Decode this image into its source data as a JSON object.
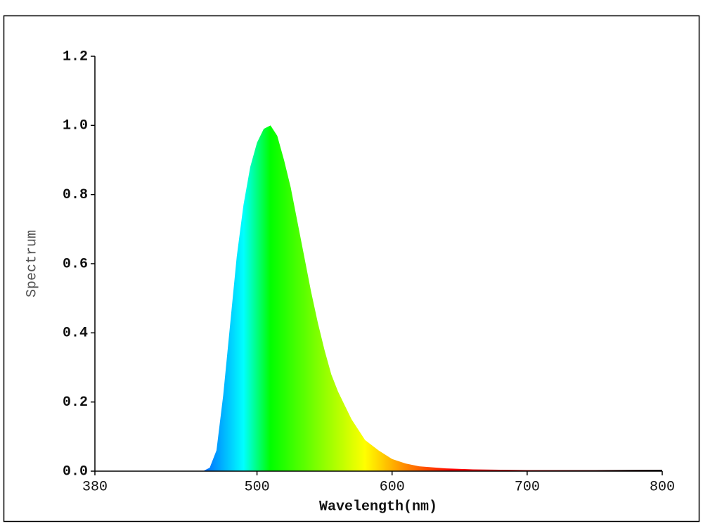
{
  "chart_data": {
    "type": "area",
    "xlabel": "Wavelength(nm)",
    "ylabel": "Spectrum",
    "x": [
      380,
      420,
      440,
      460,
      465,
      470,
      475,
      480,
      485,
      490,
      495,
      500,
      505,
      510,
      515,
      520,
      525,
      530,
      535,
      540,
      545,
      550,
      555,
      560,
      565,
      570,
      575,
      580,
      590,
      600,
      610,
      620,
      640,
      660,
      700,
      750,
      800
    ],
    "values": [
      0,
      0,
      0,
      0,
      0.01,
      0.06,
      0.22,
      0.42,
      0.62,
      0.77,
      0.88,
      0.95,
      0.99,
      1.0,
      0.97,
      0.9,
      0.82,
      0.72,
      0.62,
      0.52,
      0.43,
      0.35,
      0.28,
      0.23,
      0.19,
      0.15,
      0.12,
      0.09,
      0.06,
      0.035,
      0.022,
      0.014,
      0.008,
      0.005,
      0.003,
      0.003,
      0.004
    ],
    "color": "spectral",
    "xlim": [
      380,
      800
    ],
    "xticks": [
      380,
      500,
      600,
      700,
      800
    ],
    "ylim": [
      0,
      1.2
    ],
    "yticks": [
      {
        "value": 0,
        "label": "0.0"
      },
      0.2,
      0.4,
      0.6,
      0.8,
      {
        "value": 1,
        "label": "1.0"
      },
      1.2
    ]
  }
}
